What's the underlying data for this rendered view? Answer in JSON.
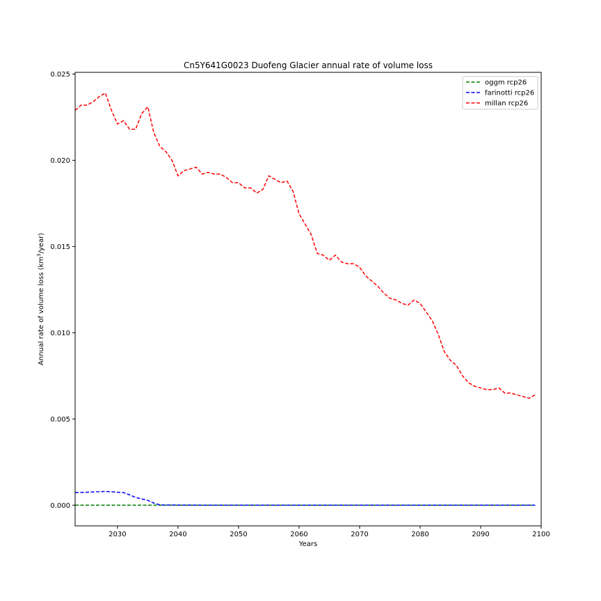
{
  "chart_data": {
    "type": "line",
    "title": "Cn5Y641G0023 Duofeng Glacier annual rate of volume loss",
    "xlabel": "Years",
    "ylabel_prefix": "Annual rate of volume loss (km",
    "ylabel_sup": "3",
    "ylabel_suffix": "/year)",
    "xlim": [
      2023,
      2100
    ],
    "ylim": [
      -0.0012,
      0.0251
    ],
    "xticks": [
      2030,
      2040,
      2050,
      2060,
      2070,
      2080,
      2090,
      2100
    ],
    "xtick_labels": [
      "2030",
      "2040",
      "2050",
      "2060",
      "2070",
      "2080",
      "2090",
      "2100"
    ],
    "yticks": [
      0.0,
      0.005,
      0.01,
      0.015,
      0.02,
      0.025
    ],
    "ytick_labels": [
      "0.000",
      "0.005",
      "0.010",
      "0.015",
      "0.020",
      "0.025"
    ],
    "grid": false,
    "legend_position": "top-right",
    "series": [
      {
        "name": "oggm rcp26",
        "color": "#008000",
        "style": "dashed",
        "x": [
          2023,
          2030,
          2040,
          2050,
          2060,
          2070,
          2080,
          2090,
          2099
        ],
        "y": [
          0.0,
          0.0,
          0.0,
          0.0,
          0.0,
          0.0,
          0.0,
          0.0,
          0.0
        ]
      },
      {
        "name": "farinotti rcp26",
        "color": "#0000ff",
        "style": "dashed",
        "x": [
          2023,
          2025,
          2028,
          2030,
          2031,
          2032,
          2033,
          2035,
          2036,
          2037,
          2038,
          2045,
          2060,
          2080,
          2099
        ],
        "y": [
          0.00073,
          0.00075,
          0.0008,
          0.00075,
          0.00073,
          0.0006,
          0.00045,
          0.00028,
          0.00012,
          2e-05,
          1e-05,
          0.0,
          0.0,
          0.0,
          0.0
        ]
      },
      {
        "name": "millan rcp26",
        "color": "#ff0000",
        "style": "dashed",
        "x": [
          2023,
          2024,
          2025,
          2026,
          2027,
          2028,
          2029,
          2030,
          2031,
          2032,
          2033,
          2034,
          2035,
          2036,
          2037,
          2038,
          2039,
          2040,
          2041,
          2042,
          2043,
          2044,
          2045,
          2046,
          2047,
          2048,
          2049,
          2050,
          2051,
          2052,
          2053,
          2054,
          2055,
          2056,
          2057,
          2058,
          2059,
          2060,
          2061,
          2062,
          2063,
          2064,
          2065,
          2066,
          2067,
          2068,
          2069,
          2070,
          2071,
          2072,
          2073,
          2074,
          2075,
          2076,
          2077,
          2078,
          2079,
          2080,
          2081,
          2082,
          2083,
          2084,
          2085,
          2086,
          2087,
          2088,
          2089,
          2090,
          2091,
          2092,
          2093,
          2094,
          2095,
          2096,
          2097,
          2098,
          2099
        ],
        "y": [
          0.0229,
          0.0232,
          0.0232,
          0.0234,
          0.0237,
          0.0239,
          0.0229,
          0.0221,
          0.0223,
          0.0218,
          0.0218,
          0.0227,
          0.0231,
          0.0216,
          0.0208,
          0.0205,
          0.02,
          0.0191,
          0.0194,
          0.0195,
          0.0196,
          0.0192,
          0.0193,
          0.0192,
          0.0192,
          0.019,
          0.0187,
          0.0187,
          0.0184,
          0.0184,
          0.0181,
          0.0183,
          0.0191,
          0.0189,
          0.0187,
          0.0188,
          0.0182,
          0.0169,
          0.0163,
          0.0157,
          0.0146,
          0.0145,
          0.0142,
          0.0145,
          0.0141,
          0.014,
          0.014,
          0.0138,
          0.0133,
          0.013,
          0.0127,
          0.0123,
          0.012,
          0.0119,
          0.0117,
          0.0116,
          0.0119,
          0.0117,
          0.0112,
          0.0107,
          0.0099,
          0.0089,
          0.0084,
          0.0081,
          0.0075,
          0.0071,
          0.0069,
          0.0068,
          0.0067,
          0.0067,
          0.0068,
          0.0065,
          0.0065,
          0.0064,
          0.0063,
          0.0062,
          0.0064
        ]
      }
    ]
  }
}
